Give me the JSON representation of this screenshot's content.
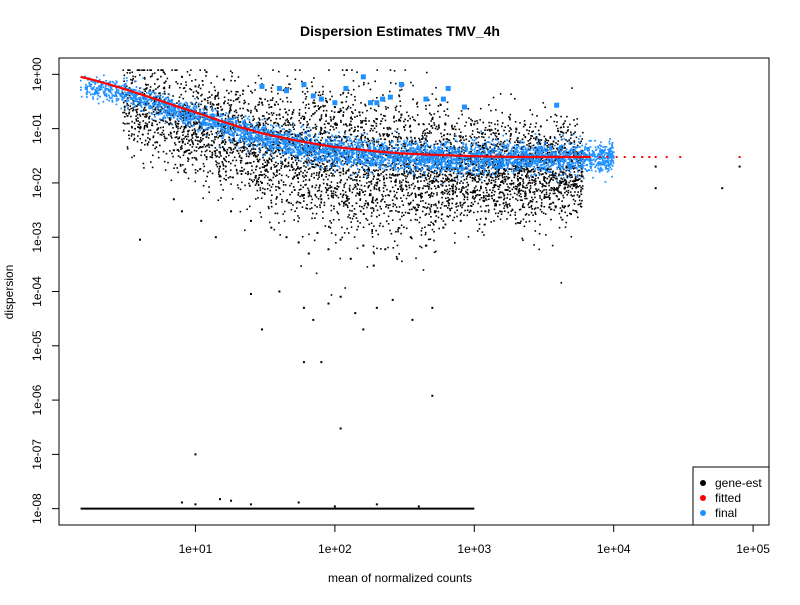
{
  "chart_data": {
    "type": "scatter",
    "title": "Dispersion Estimates TMV_4h",
    "xlabel": "mean of normalized counts",
    "ylabel": "dispersion",
    "x_scale": "log10",
    "y_scale": "log10",
    "xlim": [
      1.05,
      130000
    ],
    "ylim": [
      5e-09,
      2
    ],
    "x_ticks": [
      {
        "value": 10,
        "label": "1e+01"
      },
      {
        "value": 100,
        "label": "1e+02"
      },
      {
        "value": 1000,
        "label": "1e+03"
      },
      {
        "value": 10000,
        "label": "1e+04"
      },
      {
        "value": 100000,
        "label": "1e+05"
      }
    ],
    "y_ticks": [
      {
        "value": 1e-08,
        "label": "1e-08"
      },
      {
        "value": 1e-07,
        "label": "1e-07"
      },
      {
        "value": 1e-06,
        "label": "1e-06"
      },
      {
        "value": 1e-05,
        "label": "1e-05"
      },
      {
        "value": 0.0001,
        "label": "1e-04"
      },
      {
        "value": 0.001,
        "label": "1e-03"
      },
      {
        "value": 0.01,
        "label": "1e-02"
      },
      {
        "value": 0.1,
        "label": "1e-01"
      },
      {
        "value": 1,
        "label": "1e+00"
      }
    ],
    "legend": {
      "position": "bottom-right",
      "entries": [
        {
          "label": "gene-est",
          "color": "#000000"
        },
        {
          "label": "fitted",
          "color": "#ff0000"
        },
        {
          "label": "final",
          "color": "#1e90ff"
        }
      ]
    },
    "series": [
      {
        "name": "gene-est",
        "color": "#000000",
        "points": [
          [
            3,
            0.45
          ],
          [
            4,
            0.3
          ],
          [
            5,
            0.5
          ],
          [
            6,
            0.7
          ],
          [
            7,
            0.25
          ],
          [
            8,
            0.9
          ],
          [
            9,
            0.2
          ],
          [
            10,
            0.6
          ],
          [
            12,
            1.1
          ],
          [
            14,
            0.4
          ],
          [
            16,
            0.8
          ],
          [
            18,
            0.15
          ],
          [
            20,
            0.35
          ],
          [
            22,
            0.5
          ],
          [
            25,
            0.12
          ],
          [
            30,
            0.3
          ],
          [
            35,
            0.25
          ],
          [
            40,
            0.18
          ],
          [
            50,
            0.2
          ],
          [
            60,
            0.15
          ],
          [
            70,
            0.3
          ],
          [
            80,
            0.1
          ],
          [
            100,
            0.25
          ],
          [
            120,
            0.12
          ],
          [
            150,
            0.2
          ],
          [
            200,
            0.15
          ],
          [
            250,
            0.1
          ],
          [
            300,
            0.18
          ],
          [
            400,
            0.12
          ],
          [
            500,
            0.15
          ],
          [
            700,
            0.1
          ],
          [
            1000,
            0.12
          ],
          [
            1500,
            0.08
          ],
          [
            2000,
            0.1
          ],
          [
            3000,
            0.11
          ],
          [
            4000,
            0.09
          ],
          [
            12,
            0.03
          ],
          [
            15,
            0.02
          ],
          [
            20,
            0.015
          ],
          [
            30,
            0.01
          ],
          [
            40,
            0.008
          ],
          [
            50,
            0.012
          ],
          [
            60,
            0.006
          ],
          [
            80,
            0.005
          ],
          [
            100,
            0.008
          ],
          [
            120,
            0.004
          ],
          [
            150,
            0.006
          ],
          [
            200,
            0.005
          ],
          [
            250,
            0.007
          ],
          [
            300,
            0.009
          ],
          [
            400,
            0.006
          ],
          [
            500,
            0.01
          ],
          [
            700,
            0.008
          ],
          [
            1000,
            0.012
          ],
          [
            1500,
            0.015
          ],
          [
            2000,
            0.02
          ],
          [
            7,
            0.04
          ],
          [
            9,
            0.06
          ],
          [
            11,
            0.002
          ],
          [
            14,
            0.001
          ],
          [
            18,
            0.003
          ],
          [
            25,
            0.002
          ],
          [
            35,
            0.0015
          ],
          [
            45,
            0.001
          ],
          [
            55,
            0.0008
          ],
          [
            65,
            0.0005
          ],
          [
            75,
            0.0012
          ],
          [
            90,
            0.0006
          ],
          [
            110,
            0.0009
          ],
          [
            130,
            0.0004
          ],
          [
            160,
            0.0007
          ],
          [
            190,
            0.0003
          ],
          [
            230,
            0.0006
          ],
          [
            280,
            0.0004
          ],
          [
            350,
            0.001
          ],
          [
            450,
            0.0007
          ],
          [
            600,
            0.0015
          ],
          [
            800,
            0.002
          ],
          [
            1200,
            0.003
          ],
          [
            25,
            9e-05
          ],
          [
            40,
            0.0001
          ],
          [
            60,
            5e-05
          ],
          [
            70,
            3e-05
          ],
          [
            90,
            6e-05
          ],
          [
            110,
            8e-05
          ],
          [
            140,
            4e-05
          ],
          [
            160,
            2e-05
          ],
          [
            200,
            5e-05
          ],
          [
            260,
            7e-05
          ],
          [
            360,
            3e-05
          ],
          [
            500,
            5e-05
          ],
          [
            30,
            2e-05
          ],
          [
            60,
            5e-06
          ],
          [
            80,
            5e-06
          ],
          [
            110,
            3e-07
          ],
          [
            500,
            1.2e-06
          ],
          [
            10,
            1e-07
          ],
          [
            7,
            0.005
          ],
          [
            8,
            0.003
          ],
          [
            4,
            0.0009
          ],
          [
            20000,
            0.008
          ],
          [
            20000,
            0.02
          ],
          [
            80000,
            0.02
          ],
          [
            60000,
            0.008
          ]
        ]
      },
      {
        "name": "gene-est-zero",
        "color": "#000000",
        "x_range": [
          1.5,
          1000
        ],
        "y": 1e-08,
        "outliers": [
          [
            8,
            1.3e-08
          ],
          [
            10,
            1.2e-08
          ],
          [
            15,
            1.5e-08
          ],
          [
            18,
            1.4e-08
          ],
          [
            25,
            1.2e-08
          ],
          [
            55,
            1.3e-08
          ],
          [
            100,
            1.1e-08
          ],
          [
            200,
            1.2e-08
          ],
          [
            400,
            1.1e-08
          ]
        ]
      },
      {
        "name": "final-outliers",
        "color": "#1e90ff",
        "points": [
          [
            30,
            0.6
          ],
          [
            40,
            0.55
          ],
          [
            45,
            0.5
          ],
          [
            60,
            0.65
          ],
          [
            70,
            0.4
          ],
          [
            80,
            0.35
          ],
          [
            100,
            0.3
          ],
          [
            120,
            0.55
          ],
          [
            160,
            0.9
          ],
          [
            180,
            0.3
          ],
          [
            200,
            0.3
          ],
          [
            220,
            0.35
          ],
          [
            250,
            0.38
          ],
          [
            300,
            0.65
          ],
          [
            450,
            0.35
          ],
          [
            600,
            0.35
          ],
          [
            650,
            0.55
          ],
          [
            850,
            0.25
          ],
          [
            3900,
            0.27
          ]
        ]
      }
    ],
    "fitted_curve": [
      [
        1.5,
        0.9
      ],
      [
        2,
        0.75
      ],
      [
        3,
        0.55
      ],
      [
        5,
        0.36
      ],
      [
        8,
        0.24
      ],
      [
        10,
        0.2
      ],
      [
        15,
        0.14
      ],
      [
        20,
        0.11
      ],
      [
        30,
        0.082
      ],
      [
        50,
        0.062
      ],
      [
        80,
        0.05
      ],
      [
        100,
        0.046
      ],
      [
        200,
        0.038
      ],
      [
        300,
        0.035
      ],
      [
        500,
        0.033
      ],
      [
        1000,
        0.031
      ],
      [
        2000,
        0.03
      ],
      [
        5000,
        0.03
      ],
      [
        10000,
        0.03
      ],
      [
        30000,
        0.03
      ],
      [
        80000,
        0.03
      ]
    ],
    "final_band": [
      [
        1.5,
        0.65
      ],
      [
        2,
        0.55
      ],
      [
        3,
        0.43
      ],
      [
        5,
        0.3
      ],
      [
        8,
        0.2
      ],
      [
        10,
        0.17
      ],
      [
        15,
        0.12
      ],
      [
        20,
        0.095
      ],
      [
        30,
        0.07
      ],
      [
        50,
        0.05
      ],
      [
        80,
        0.04
      ],
      [
        100,
        0.037
      ],
      [
        200,
        0.032
      ],
      [
        300,
        0.03
      ],
      [
        500,
        0.029
      ],
      [
        1000,
        0.029
      ],
      [
        2000,
        0.029
      ],
      [
        5000,
        0.029
      ],
      [
        10000,
        0.03
      ]
    ]
  }
}
